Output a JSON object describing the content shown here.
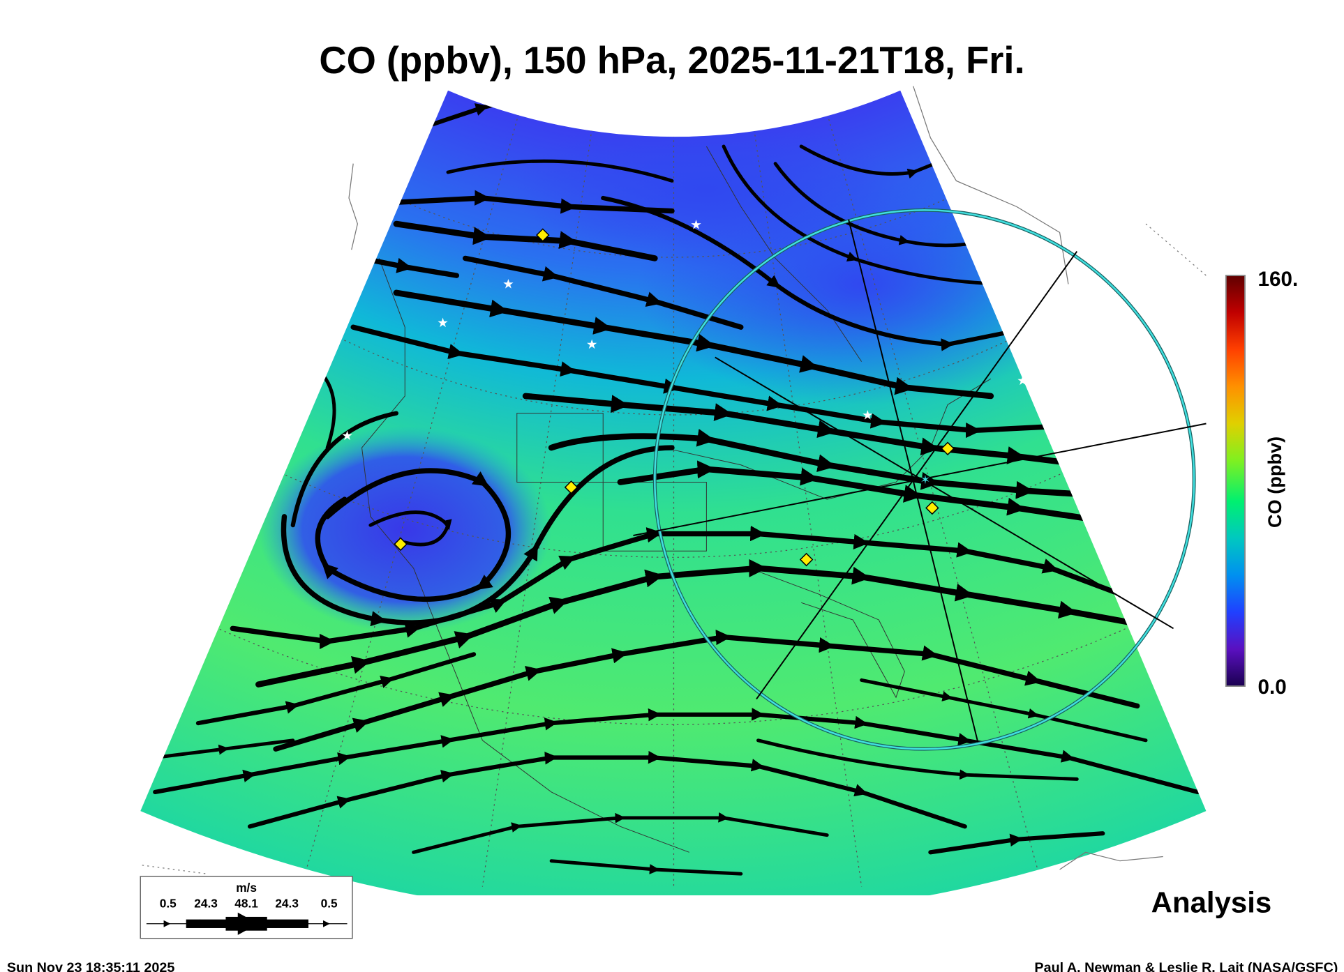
{
  "title": "CO (ppbv), 150 hPa, 2025-11-21T18, Fri.",
  "colorbar": {
    "max_label": "160.",
    "min_label": "0.0",
    "label": "CO (ppbv)",
    "min": 0,
    "max": 160,
    "colors": [
      "#1a0050",
      "#5a10c0",
      "#2040ff",
      "#0090f0",
      "#00c8c0",
      "#00f070",
      "#80f020",
      "#e0d000",
      "#ff9000",
      "#ff4000",
      "#c00000",
      "#600000"
    ]
  },
  "legend": {
    "unit": "m/s",
    "values": [
      "0.5",
      "24.3",
      "48.1",
      "24.3",
      "0.5"
    ]
  },
  "panel_label": "Analysis",
  "footer": {
    "timestamp": "Sun Nov 23 18:35:11 2025",
    "credit": "Paul A. Newman & Leslie R. Lait (NASA/GSFC)"
  },
  "colors": {
    "ring": "#40e0e0",
    "marker": "#ffee00",
    "low_co": "#3040e8",
    "high_co": "#40e880"
  }
}
